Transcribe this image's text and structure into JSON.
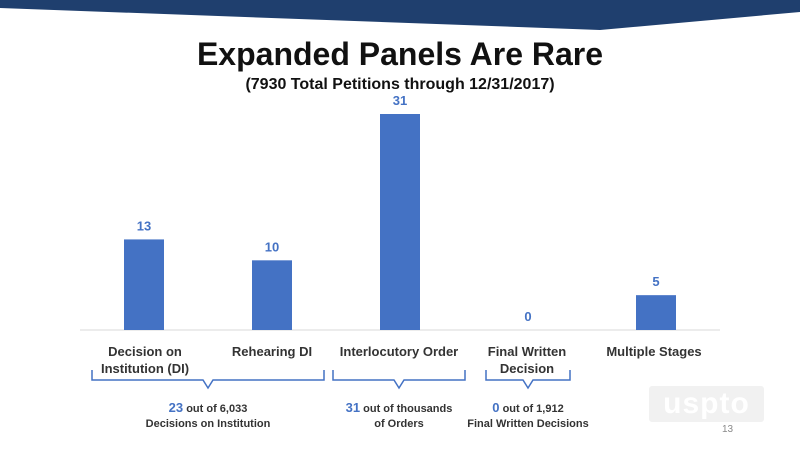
{
  "slide": {
    "title": "Expanded Panels Are Rare",
    "subtitle": "(7930 Total Petitions through 12/31/2017)",
    "page_number": "13",
    "logo_text": "uspto"
  },
  "chart_data": {
    "type": "bar",
    "title": "Expanded Panels Are Rare",
    "subtitle": "(7930 Total Petitions through 12/31/2017)",
    "categories": [
      "Decision on Institution (DI)",
      "Rehearing DI",
      "Interlocutory Order",
      "Final Written Decision",
      "Multiple Stages"
    ],
    "category_lines": [
      [
        "Decision on",
        "Institution (DI)"
      ],
      [
        "Rehearing DI"
      ],
      [
        "Interlocutory Order"
      ],
      [
        "Final Written",
        "Decision"
      ],
      [
        "Multiple Stages"
      ]
    ],
    "values": [
      13,
      10,
      31,
      0,
      5
    ],
    "ylim": [
      0,
      31
    ],
    "grid": false,
    "bar_color": "#4472c4",
    "label_color": "#4472c4"
  },
  "notes": [
    {
      "count": "23",
      "text1": " out of 6,033",
      "text2": "Decisions on Institution"
    },
    {
      "count": "31",
      "text1": " out of thousands",
      "text2": "of Orders"
    },
    {
      "count": "0",
      "text1": " out of 1,912",
      "text2": "Final Written Decisions"
    }
  ],
  "colors": {
    "accent": "#4472c4",
    "header_band": "#1f3f6e",
    "bracket": "#4472c4"
  }
}
